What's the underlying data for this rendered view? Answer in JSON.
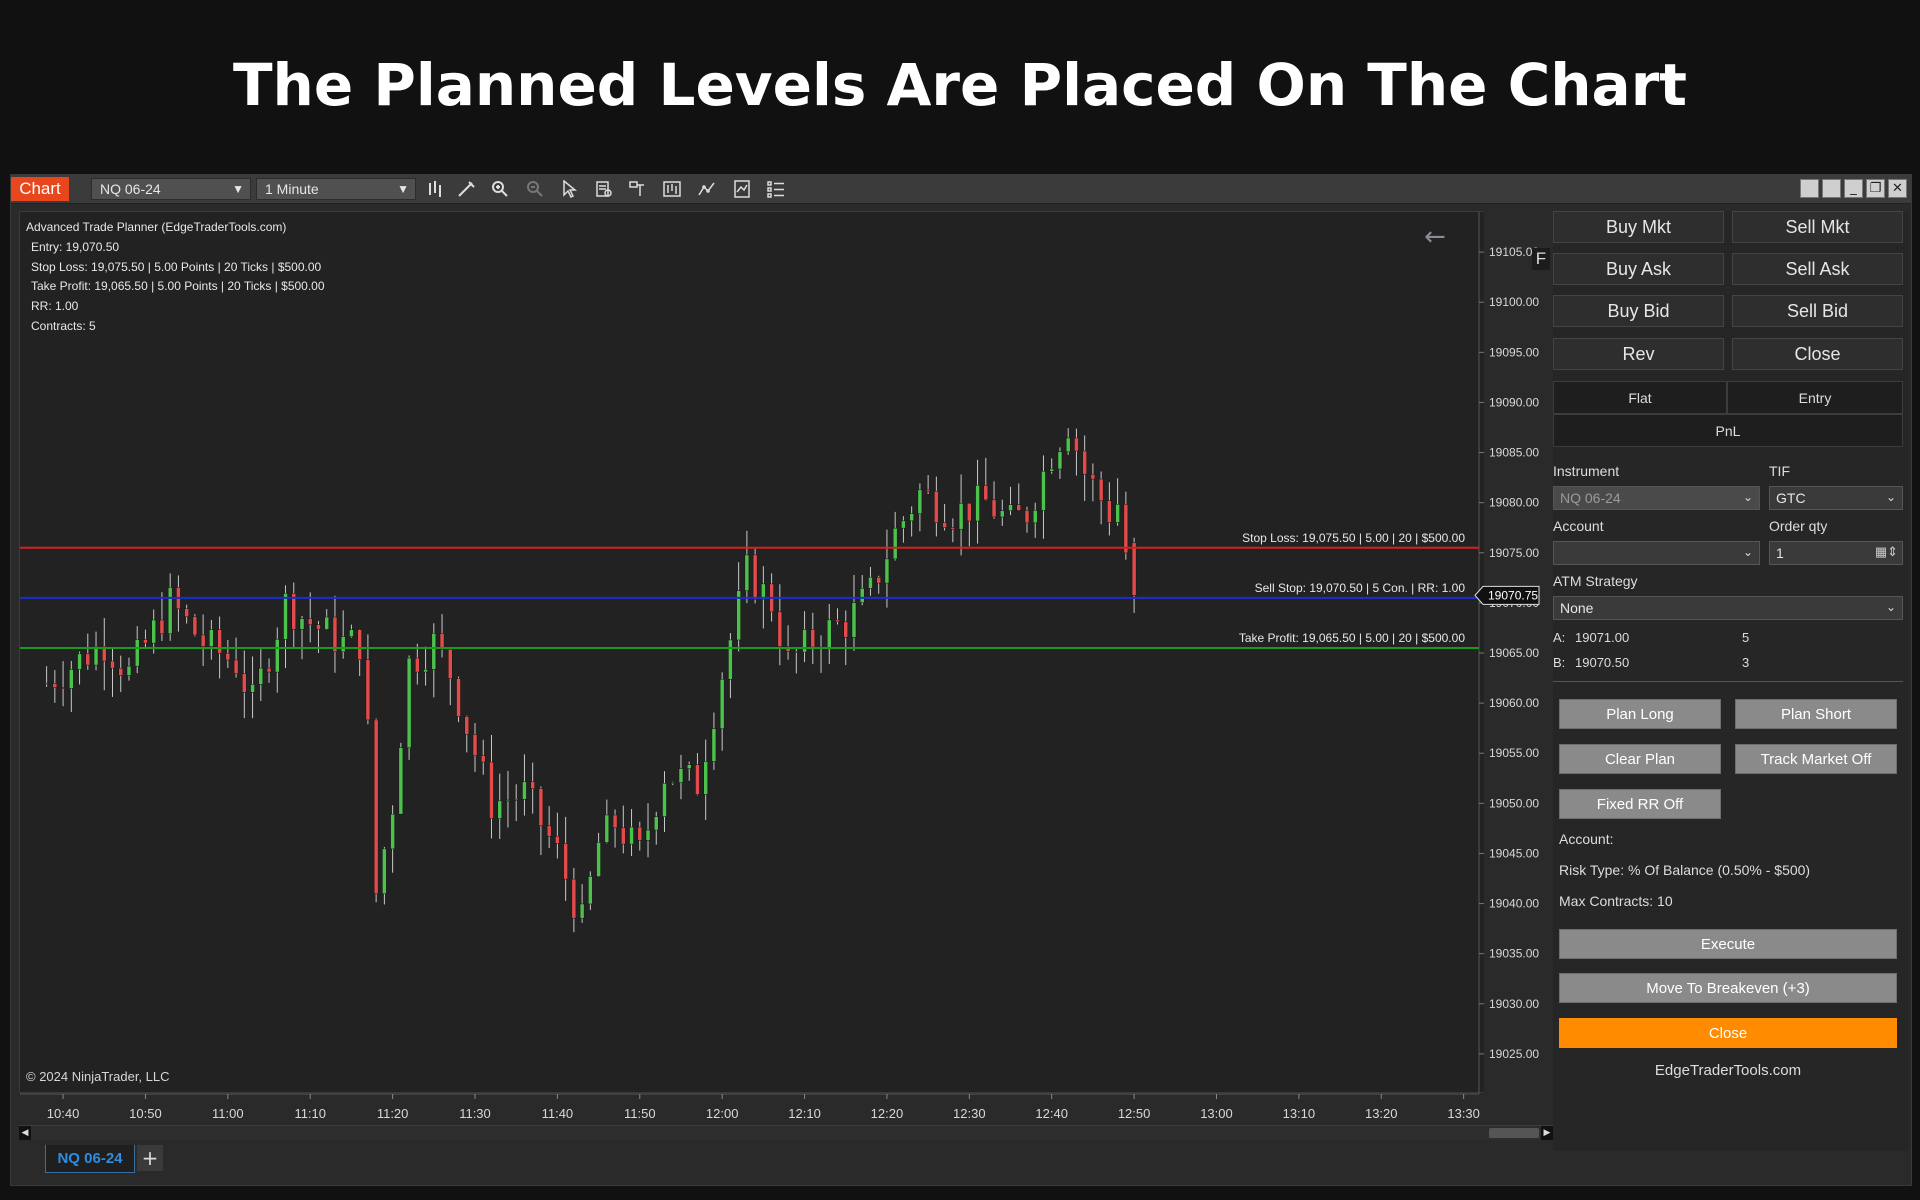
{
  "banner": {
    "title": "The Planned Levels Are Placed On The Chart"
  },
  "toolbar": {
    "chart_tab": "Chart",
    "instrument": "NQ 06-24",
    "interval": "1 Minute",
    "icons": [
      "bar-type-icon",
      "draw-tools-icon",
      "zoom-in-icon",
      "zoom-out-icon",
      "pointer-icon",
      "properties-icon",
      "data-box-icon",
      "chart-trader-icon",
      "strategies-icon",
      "indicators-icon",
      "templates-icon"
    ]
  },
  "info": {
    "title": "Advanced Trade Planner (EdgeTraderTools.com)",
    "entry": "Entry: 19,070.50",
    "stop": "Stop Loss: 19,075.50 | 5.00 Points | 20 Ticks | $500.00",
    "target": "Take Profit: 19,065.50 | 5.00 Points | 20 Ticks | $500.00",
    "rr": "RR: 1.00",
    "contracts": "Contracts: 5"
  },
  "copyright": "© 2024 NinjaTrader, LLC",
  "f_button": "F",
  "bottom_tab": "NQ 06-24",
  "chart_data": {
    "type": "candlestick",
    "instrument": "NQ 06-24",
    "interval": "1 Minute",
    "x_ticks": [
      "10:40",
      "10:50",
      "11:00",
      "11:10",
      "11:20",
      "11:30",
      "11:40",
      "11:50",
      "12:00",
      "12:10",
      "12:20",
      "12:30",
      "12:40",
      "12:50",
      "13:00",
      "13:10",
      "13:20",
      "13:30"
    ],
    "y_ticks": [
      "19105.00",
      "19100.00",
      "19095.00",
      "19090.00",
      "19085.00",
      "19080.00",
      "19075.00",
      "19070.00",
      "19065.00",
      "19060.00",
      "19055.00",
      "19050.00",
      "19045.00",
      "19040.00",
      "19035.00",
      "19030.00",
      "19025.00"
    ],
    "ylim": [
      19021,
      19109
    ],
    "last_price": "19070.75",
    "levels": [
      {
        "price": 19075.5,
        "label": "Stop Loss: 19,075.50 | 5.00 | 20 | $500.00",
        "color": "#d62020"
      },
      {
        "price": 19070.5,
        "label": "Sell Stop: 19,070.50 | 5 Con. | RR: 1.00",
        "color": "#1a2fd0"
      },
      {
        "price": 19065.5,
        "label": "Take Profit: 19,065.50 | 5.00 | 20 | $500.00",
        "color": "#1a9a1a"
      }
    ],
    "key_points": [
      [
        "10:38",
        19062
      ],
      [
        "10:45",
        19066
      ],
      [
        "10:48",
        19063
      ],
      [
        "10:53",
        19070
      ],
      [
        "10:57",
        19066
      ],
      [
        "11:01",
        19064
      ],
      [
        "11:03",
        19060
      ],
      [
        "11:07",
        19070
      ],
      [
        "11:10",
        19068
      ],
      [
        "11:14",
        19066
      ],
      [
        "11:16",
        19066
      ],
      [
        "11:17",
        19057
      ],
      [
        "11:18",
        19041
      ],
      [
        "11:20",
        19050
      ],
      [
        "11:22",
        19064
      ],
      [
        "11:25",
        19066
      ],
      [
        "11:27",
        19063
      ],
      [
        "11:30",
        19055
      ],
      [
        "11:32",
        19050
      ],
      [
        "11:36",
        19051
      ],
      [
        "11:40",
        19045
      ],
      [
        "11:43",
        19038
      ],
      [
        "11:45",
        19046
      ],
      [
        "11:47",
        19048
      ],
      [
        "11:50",
        19045
      ],
      [
        "11:53",
        19053
      ],
      [
        "11:57",
        19052
      ],
      [
        "12:00",
        19063
      ],
      [
        "12:03",
        19073
      ],
      [
        "12:06",
        19070
      ],
      [
        "12:08",
        19064
      ],
      [
        "12:12",
        19067
      ],
      [
        "12:15",
        19068
      ],
      [
        "12:18",
        19071
      ],
      [
        "12:21",
        19077
      ],
      [
        "12:24",
        19081
      ],
      [
        "12:28",
        19079
      ],
      [
        "12:32",
        19080
      ],
      [
        "12:35",
        19078
      ],
      [
        "12:37",
        19079
      ],
      [
        "12:40",
        19085
      ],
      [
        "12:42",
        19088
      ],
      [
        "12:44",
        19083
      ],
      [
        "12:47",
        19079
      ],
      [
        "12:48",
        19080
      ],
      [
        "12:49",
        19075
      ],
      [
        "12:50",
        19070
      ]
    ],
    "up_color": "#4cc24c",
    "down_color": "#e24b4b"
  },
  "panel": {
    "buy_mkt": "Buy Mkt",
    "sell_mkt": "Sell Mkt",
    "buy_ask": "Buy Ask",
    "sell_ask": "Sell Ask",
    "buy_bid": "Buy Bid",
    "sell_bid": "Sell Bid",
    "rev": "Rev",
    "close": "Close",
    "flat": "Flat",
    "entry": "Entry",
    "pnl": "PnL",
    "instrument_label": "Instrument",
    "instrument_value": "NQ 06-24",
    "tif_label": "TIF",
    "tif_value": "GTC",
    "account_label": "Account",
    "account_value": "",
    "order_qty_label": "Order qty",
    "order_qty_value": "1",
    "atm_label": "ATM Strategy",
    "atm_value": "None",
    "a_label": "A:",
    "a_price": "19071.00",
    "a_size": "5",
    "b_label": "B:",
    "b_price": "19070.50",
    "b_size": "3",
    "plan_long": "Plan Long",
    "plan_short": "Plan Short",
    "clear_plan": "Clear Plan",
    "track_market": "Track Market Off",
    "fixed_rr": "Fixed RR Off",
    "account_info": "Account:",
    "risk_type": "Risk Type: % Of Balance (0.50% - $500)",
    "max_contracts": "Max Contracts: 10",
    "execute": "Execute",
    "breakeven": "Move To Breakeven (+3)",
    "close_btn": "Close",
    "site": "EdgeTraderTools.com"
  }
}
